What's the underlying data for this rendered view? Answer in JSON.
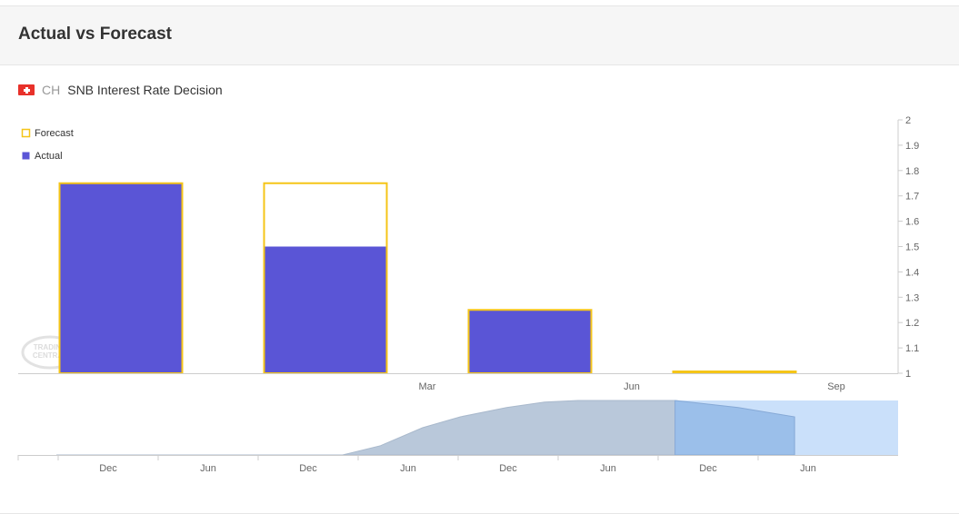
{
  "header": {
    "title": "Actual vs Forecast"
  },
  "event": {
    "country": "CH",
    "title": "SNB Interest Rate Decision"
  },
  "colors": {
    "actual": "#5a55d6",
    "forecast": "#f5c518",
    "navigator_area": "#b9c8da",
    "navigator_selected": "#9bbfea",
    "navigator_window": "#c4ddfa",
    "flag": "#e8312a"
  },
  "icons": {
    "flag": "switzerland-flag-icon",
    "watermark": "trading-central-logo"
  },
  "chart_data": {
    "type": "bar",
    "legend": [
      {
        "name": "Forecast",
        "style": "outline",
        "color": "#f5c518"
      },
      {
        "name": "Actual",
        "style": "filled",
        "color": "#5a55d6"
      }
    ],
    "legend_position": "top-left",
    "categories": [
      "",
      "Mar",
      "Jun",
      "Sep"
    ],
    "series": [
      {
        "name": "Forecast",
        "values": [
          1.75,
          1.75,
          1.25,
          1.0
        ]
      },
      {
        "name": "Actual",
        "values": [
          1.75,
          1.5,
          1.25,
          null
        ]
      }
    ],
    "yaxis": {
      "position": "right",
      "ylim": [
        1,
        2
      ],
      "ticks": [
        "1",
        "1.1",
        "1.2",
        "1.3",
        "1.4",
        "1.5",
        "1.6",
        "1.7",
        "1.8",
        "1.9",
        "2"
      ]
    },
    "navigator": {
      "ticks": [
        "Dec",
        "Jun",
        "Dec",
        "Jun",
        "Dec",
        "Jun",
        "Dec",
        "Jun"
      ],
      "profile": [
        [
          0.0,
          0.0
        ],
        [
          0.34,
          0.0
        ],
        [
          0.385,
          0.17
        ],
        [
          0.435,
          0.5
        ],
        [
          0.48,
          0.7
        ],
        [
          0.535,
          0.87
        ],
        [
          0.58,
          0.97
        ],
        [
          0.62,
          1.0
        ],
        [
          0.735,
          1.0
        ],
        [
          0.81,
          0.87
        ],
        [
          0.877,
          0.7
        ]
      ],
      "selected_range": [
        0.735,
        1.0
      ]
    },
    "credits": "© 2024 TRADING CENTRAL"
  }
}
